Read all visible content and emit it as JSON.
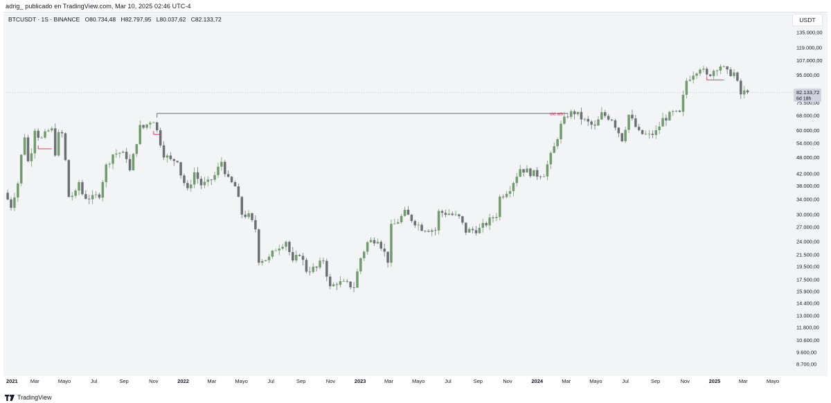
{
  "caption": "adrig_ publicado en TradingView.com, Mar 10, 2025 02:46 UTC-4",
  "symbol": {
    "name": "BTCUSDT · 1S · BINANCE",
    "open": "O80.734,48",
    "high": "H82.797,95",
    "low": "L80.037,62",
    "close": "C82.133,72"
  },
  "currency": "USDT",
  "footer_brand": "TradingView",
  "colors": {
    "up": "#739a70",
    "down": "#6c7075",
    "background": "#f3f4f5",
    "annotation": "#e0245e",
    "line": "#555a62"
  },
  "chart_data": {
    "type": "candlestick",
    "scale": "log",
    "ylim": [
      8200,
      145000
    ],
    "y_ticks": [
      "135.000,00",
      "119.000,00",
      "107.000,00",
      "95.000,00",
      "75.500,00",
      "68.000,00",
      "60.000,00",
      "54.000,00",
      "48.000,00",
      "42.000,00",
      "38.000,00",
      "34.000,00",
      "30.000,00",
      "27.000,00",
      "24.000,00",
      "21.500,00",
      "19.500,00",
      "17.500,00",
      "15.900,00",
      "14.400,00",
      "13.000,00",
      "11.800,00",
      "10.600,00",
      "9.600,00",
      "8.700,00"
    ],
    "y_tick_values": [
      135000,
      119000,
      107000,
      95000,
      75500,
      68000,
      60000,
      54000,
      48000,
      42000,
      38000,
      34000,
      30000,
      27000,
      24000,
      21500,
      19500,
      17500,
      15900,
      14400,
      13000,
      11800,
      10600,
      9600,
      8700
    ],
    "x_ticks": [
      "2021",
      "Mar",
      "Mayo",
      "Jul",
      "Sep",
      "Nov",
      "2022",
      "Mar",
      "Mayo",
      "Jul",
      "Sep",
      "Nov",
      "2023",
      "Mar",
      "Mayo",
      "Jul",
      "Sep",
      "Nov",
      "2024",
      "Mar",
      "Mayo",
      "Jul",
      "Sep",
      "Nov",
      "2025",
      "Mar",
      "Mayo"
    ],
    "x_tick_values": [
      "2021-01-01",
      "2021-03-01",
      "2021-05-01",
      "2021-07-01",
      "2021-09-01",
      "2021-11-01",
      "2022-01-01",
      "2022-03-01",
      "2022-05-01",
      "2022-07-01",
      "2022-09-01",
      "2022-11-01",
      "2023-01-01",
      "2023-03-01",
      "2023-05-01",
      "2023-07-01",
      "2023-09-01",
      "2023-11-01",
      "2024-01-01",
      "2024-03-01",
      "2024-05-01",
      "2024-07-01",
      "2024-09-01",
      "2024-11-01",
      "2025-01-01",
      "2025-03-01",
      "2025-05-01"
    ],
    "x_bold": [
      "2021",
      "2022",
      "2023",
      "2024",
      "2025"
    ],
    "xlim": [
      "2021-01-01",
      "2025-05-31"
    ],
    "last_price_label": "82.133,72",
    "countdown_label": "6d 18h",
    "current_price": 82133.72,
    "annotation": {
      "text": "old ath",
      "price": 69000,
      "from_date": "2021-11-08",
      "to_date": "2024-03-04"
    },
    "weekly_closes": [
      {
        "date": "2021-01-04",
        "close": 35800
      },
      {
        "date": "2021-01-18",
        "close": 32100
      },
      {
        "date": "2021-02-01",
        "close": 38900
      },
      {
        "date": "2021-02-08",
        "close": 48600
      },
      {
        "date": "2021-02-15",
        "close": 57500
      },
      {
        "date": "2021-02-22",
        "close": 46300
      },
      {
        "date": "2021-03-01",
        "close": 51000
      },
      {
        "date": "2021-03-08",
        "close": 61200
      },
      {
        "date": "2021-03-15",
        "close": 57500
      },
      {
        "date": "2021-03-22",
        "close": 55900
      },
      {
        "date": "2021-04-05",
        "close": 59800
      },
      {
        "date": "2021-04-12",
        "close": 60000
      },
      {
        "date": "2021-04-19",
        "close": 50000
      },
      {
        "date": "2021-04-26",
        "close": 57800
      },
      {
        "date": "2021-05-03",
        "close": 58200
      },
      {
        "date": "2021-05-10",
        "close": 46500
      },
      {
        "date": "2021-05-17",
        "close": 34700
      },
      {
        "date": "2021-05-31",
        "close": 35500
      },
      {
        "date": "2021-06-07",
        "close": 39100
      },
      {
        "date": "2021-06-14",
        "close": 35500
      },
      {
        "date": "2021-06-21",
        "close": 34600
      },
      {
        "date": "2021-07-05",
        "close": 34200
      },
      {
        "date": "2021-07-19",
        "close": 35400
      },
      {
        "date": "2021-07-26",
        "close": 39800
      },
      {
        "date": "2021-08-02",
        "close": 44600
      },
      {
        "date": "2021-08-16",
        "close": 49300
      },
      {
        "date": "2021-08-30",
        "close": 49900
      },
      {
        "date": "2021-09-13",
        "close": 48300
      },
      {
        "date": "2021-09-20",
        "close": 42700
      },
      {
        "date": "2021-10-04",
        "close": 54900
      },
      {
        "date": "2021-10-11",
        "close": 61500
      },
      {
        "date": "2021-10-18",
        "close": 61300
      },
      {
        "date": "2021-11-01",
        "close": 64900
      },
      {
        "date": "2021-11-08",
        "close": 65500
      },
      {
        "date": "2021-11-15",
        "close": 59600
      },
      {
        "date": "2021-11-29",
        "close": 49400
      },
      {
        "date": "2021-12-13",
        "close": 46700
      },
      {
        "date": "2021-12-27",
        "close": 47300
      },
      {
        "date": "2022-01-03",
        "close": 41800
      },
      {
        "date": "2022-01-17",
        "close": 36300
      },
      {
        "date": "2022-01-31",
        "close": 42400
      },
      {
        "date": "2022-02-14",
        "close": 38300
      },
      {
        "date": "2022-02-28",
        "close": 38800
      },
      {
        "date": "2022-03-14",
        "close": 41300
      },
      {
        "date": "2022-03-28",
        "close": 46400
      },
      {
        "date": "2022-04-11",
        "close": 39700
      },
      {
        "date": "2022-04-25",
        "close": 37700
      },
      {
        "date": "2022-05-09",
        "close": 30100
      },
      {
        "date": "2022-05-23",
        "close": 29500
      },
      {
        "date": "2022-06-06",
        "close": 26600
      },
      {
        "date": "2022-06-13",
        "close": 20600
      },
      {
        "date": "2022-07-04",
        "close": 20800
      },
      {
        "date": "2022-07-18",
        "close": 22600
      },
      {
        "date": "2022-08-08",
        "close": 24100
      },
      {
        "date": "2022-08-22",
        "close": 20000
      },
      {
        "date": "2022-09-05",
        "close": 21800
      },
      {
        "date": "2022-09-19",
        "close": 18900
      },
      {
        "date": "2022-10-10",
        "close": 19200
      },
      {
        "date": "2022-10-24",
        "close": 20600
      },
      {
        "date": "2022-11-07",
        "close": 16300
      },
      {
        "date": "2022-11-21",
        "close": 17100
      },
      {
        "date": "2022-12-12",
        "close": 16800
      },
      {
        "date": "2022-12-26",
        "close": 16500
      },
      {
        "date": "2023-01-09",
        "close": 20900
      },
      {
        "date": "2023-01-23",
        "close": 23700
      },
      {
        "date": "2023-02-13",
        "close": 24600
      },
      {
        "date": "2023-03-06",
        "close": 20500
      },
      {
        "date": "2023-03-13",
        "close": 26900
      },
      {
        "date": "2023-03-27",
        "close": 28400
      },
      {
        "date": "2023-04-10",
        "close": 30300
      },
      {
        "date": "2023-04-24",
        "close": 28800
      },
      {
        "date": "2023-05-15",
        "close": 26800
      },
      {
        "date": "2023-06-12",
        "close": 26300
      },
      {
        "date": "2023-06-19",
        "close": 30500
      },
      {
        "date": "2023-07-10",
        "close": 30200
      },
      {
        "date": "2023-07-31",
        "close": 29100
      },
      {
        "date": "2023-08-14",
        "close": 26100
      },
      {
        "date": "2023-09-11",
        "close": 26500
      },
      {
        "date": "2023-10-16",
        "close": 29900
      },
      {
        "date": "2023-10-23",
        "close": 34500
      },
      {
        "date": "2023-11-13",
        "close": 37400
      },
      {
        "date": "2023-12-04",
        "close": 43800
      },
      {
        "date": "2023-12-25",
        "close": 42300
      },
      {
        "date": "2024-01-08",
        "close": 41600
      },
      {
        "date": "2024-01-22",
        "close": 42000
      },
      {
        "date": "2024-02-12",
        "close": 52100
      },
      {
        "date": "2024-02-26",
        "close": 62400
      },
      {
        "date": "2024-03-11",
        "close": 68400
      },
      {
        "date": "2024-03-25",
        "close": 69600
      },
      {
        "date": "2024-04-15",
        "close": 64900
      },
      {
        "date": "2024-05-06",
        "close": 61500
      },
      {
        "date": "2024-05-20",
        "close": 68500
      },
      {
        "date": "2024-06-10",
        "close": 66200
      },
      {
        "date": "2024-07-01",
        "close": 55900
      },
      {
        "date": "2024-07-15",
        "close": 68200
      },
      {
        "date": "2024-08-05",
        "close": 58700
      },
      {
        "date": "2024-08-26",
        "close": 57300
      },
      {
        "date": "2024-09-09",
        "close": 59200
      },
      {
        "date": "2024-09-23",
        "close": 65600
      },
      {
        "date": "2024-10-14",
        "close": 69000
      },
      {
        "date": "2024-10-28",
        "close": 68700
      },
      {
        "date": "2024-11-11",
        "close": 90500
      },
      {
        "date": "2024-11-25",
        "close": 96400
      },
      {
        "date": "2024-12-09",
        "close": 101400
      },
      {
        "date": "2024-12-23",
        "close": 93700
      },
      {
        "date": "2025-01-13",
        "close": 101300
      },
      {
        "date": "2025-01-20",
        "close": 102600
      },
      {
        "date": "2025-02-03",
        "close": 96500
      },
      {
        "date": "2025-02-17",
        "close": 96300
      },
      {
        "date": "2025-03-03",
        "close": 80700
      },
      {
        "date": "2025-03-10",
        "close": 82133.72
      }
    ]
  }
}
